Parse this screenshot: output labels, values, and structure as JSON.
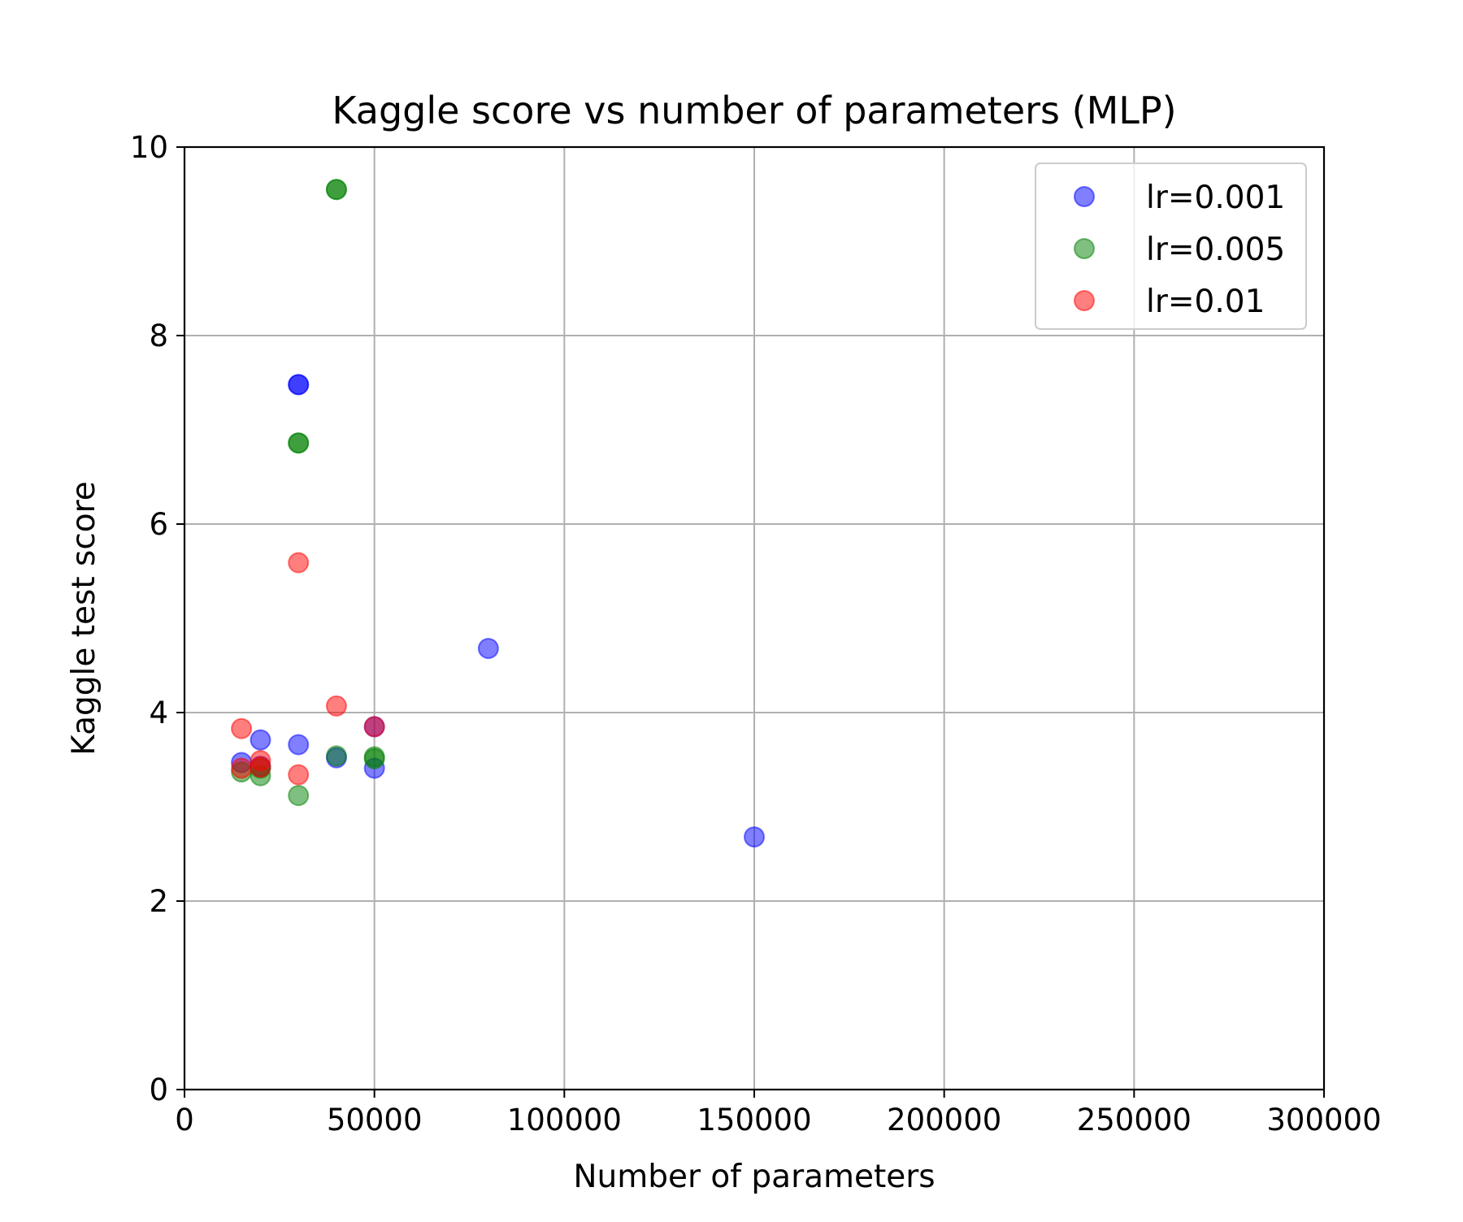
{
  "chart_data": {
    "type": "scatter",
    "title": "Kaggle score vs number of parameters (MLP)",
    "xlabel": "Number of parameters",
    "ylabel": "Kaggle test score",
    "xlim": [
      0,
      300000
    ],
    "ylim": [
      0,
      10
    ],
    "x_ticks": [
      0,
      50000,
      100000,
      150000,
      200000,
      250000,
      300000
    ],
    "y_ticks": [
      0,
      2,
      4,
      6,
      8,
      10
    ],
    "grid": true,
    "legend_position": "top-right",
    "point_alpha": 0.5,
    "series": [
      {
        "name": "lr=0.001",
        "color": "#0000ff",
        "points": [
          {
            "x": 15000,
            "y": 3.47
          },
          {
            "x": 20000,
            "y": 3.71
          },
          {
            "x": 20000,
            "y": 3.43
          },
          {
            "x": 30000,
            "y": 7.48
          },
          {
            "x": 30000,
            "y": 7.48
          },
          {
            "x": 30000,
            "y": 3.66
          },
          {
            "x": 40000,
            "y": 3.52
          },
          {
            "x": 50000,
            "y": 3.41
          },
          {
            "x": 50000,
            "y": 3.85
          },
          {
            "x": 80000,
            "y": 4.68
          },
          {
            "x": 150000,
            "y": 2.68
          }
        ]
      },
      {
        "name": "lr=0.005",
        "color": "#008000",
        "points": [
          {
            "x": 15000,
            "y": 3.37
          },
          {
            "x": 20000,
            "y": 3.33
          },
          {
            "x": 20000,
            "y": 3.41
          },
          {
            "x": 30000,
            "y": 6.86
          },
          {
            "x": 30000,
            "y": 6.86
          },
          {
            "x": 30000,
            "y": 3.12
          },
          {
            "x": 40000,
            "y": 9.55
          },
          {
            "x": 40000,
            "y": 9.55
          },
          {
            "x": 40000,
            "y": 3.54
          },
          {
            "x": 50000,
            "y": 3.53
          },
          {
            "x": 50000,
            "y": 3.51
          }
        ]
      },
      {
        "name": "lr=0.01",
        "color": "#ff0000",
        "points": [
          {
            "x": 15000,
            "y": 3.83
          },
          {
            "x": 15000,
            "y": 3.41
          },
          {
            "x": 20000,
            "y": 3.49
          },
          {
            "x": 20000,
            "y": 3.42
          },
          {
            "x": 30000,
            "y": 5.59
          },
          {
            "x": 30000,
            "y": 3.34
          },
          {
            "x": 40000,
            "y": 4.07
          },
          {
            "x": 50000,
            "y": 3.85
          }
        ]
      }
    ]
  }
}
